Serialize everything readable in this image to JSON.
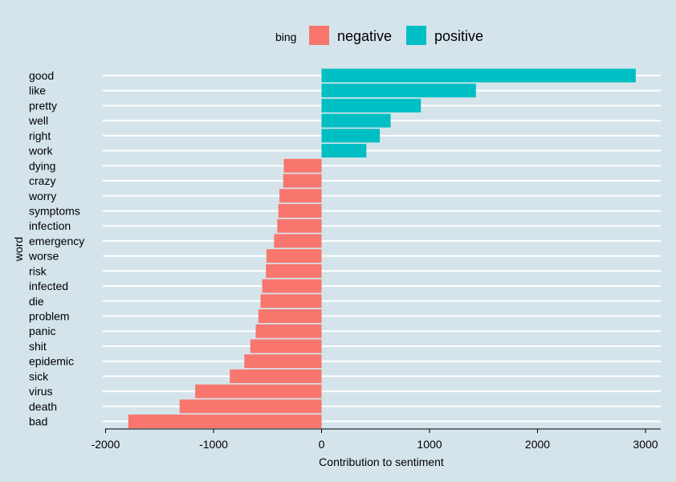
{
  "chart_data": {
    "type": "bar",
    "orientation": "horizontal",
    "xlabel": "Contribution to sentiment",
    "ylabel": "word",
    "xlim": [
      -2000,
      3100
    ],
    "xticks": [
      -2000,
      -1000,
      0,
      1000,
      2000,
      3000
    ],
    "xtick_labels": [
      "-2000",
      "-1000",
      "0",
      "1000",
      "2000",
      "3000"
    ],
    "grid": true,
    "legend": {
      "title": "bing",
      "placement": "top",
      "entries": [
        {
          "label": "negative",
          "color": "#f8766d"
        },
        {
          "label": "positive",
          "color": "#00bfc4"
        }
      ]
    },
    "bars": [
      {
        "word": "good",
        "value": 2910,
        "sentiment": "positive"
      },
      {
        "word": "like",
        "value": 1430,
        "sentiment": "positive"
      },
      {
        "word": "pretty",
        "value": 920,
        "sentiment": "positive"
      },
      {
        "word": "well",
        "value": 640,
        "sentiment": "positive"
      },
      {
        "word": "right",
        "value": 540,
        "sentiment": "positive"
      },
      {
        "word": "work",
        "value": 415,
        "sentiment": "positive"
      },
      {
        "word": "dying",
        "value": -350,
        "sentiment": "negative"
      },
      {
        "word": "crazy",
        "value": -355,
        "sentiment": "negative"
      },
      {
        "word": "worry",
        "value": -390,
        "sentiment": "negative"
      },
      {
        "word": "symptoms",
        "value": -400,
        "sentiment": "negative"
      },
      {
        "word": "infection",
        "value": -410,
        "sentiment": "negative"
      },
      {
        "word": "emergency",
        "value": -440,
        "sentiment": "negative"
      },
      {
        "word": "worse",
        "value": -510,
        "sentiment": "negative"
      },
      {
        "word": "risk",
        "value": -515,
        "sentiment": "negative"
      },
      {
        "word": "infected",
        "value": -550,
        "sentiment": "negative"
      },
      {
        "word": "die",
        "value": -565,
        "sentiment": "negative"
      },
      {
        "word": "problem",
        "value": -585,
        "sentiment": "negative"
      },
      {
        "word": "panic",
        "value": -610,
        "sentiment": "negative"
      },
      {
        "word": "shit",
        "value": -660,
        "sentiment": "negative"
      },
      {
        "word": "epidemic",
        "value": -715,
        "sentiment": "negative"
      },
      {
        "word": "sick",
        "value": -850,
        "sentiment": "negative"
      },
      {
        "word": "virus",
        "value": -1170,
        "sentiment": "negative"
      },
      {
        "word": "death",
        "value": -1315,
        "sentiment": "negative"
      },
      {
        "word": "bad",
        "value": -1790,
        "sentiment": "negative"
      }
    ]
  }
}
